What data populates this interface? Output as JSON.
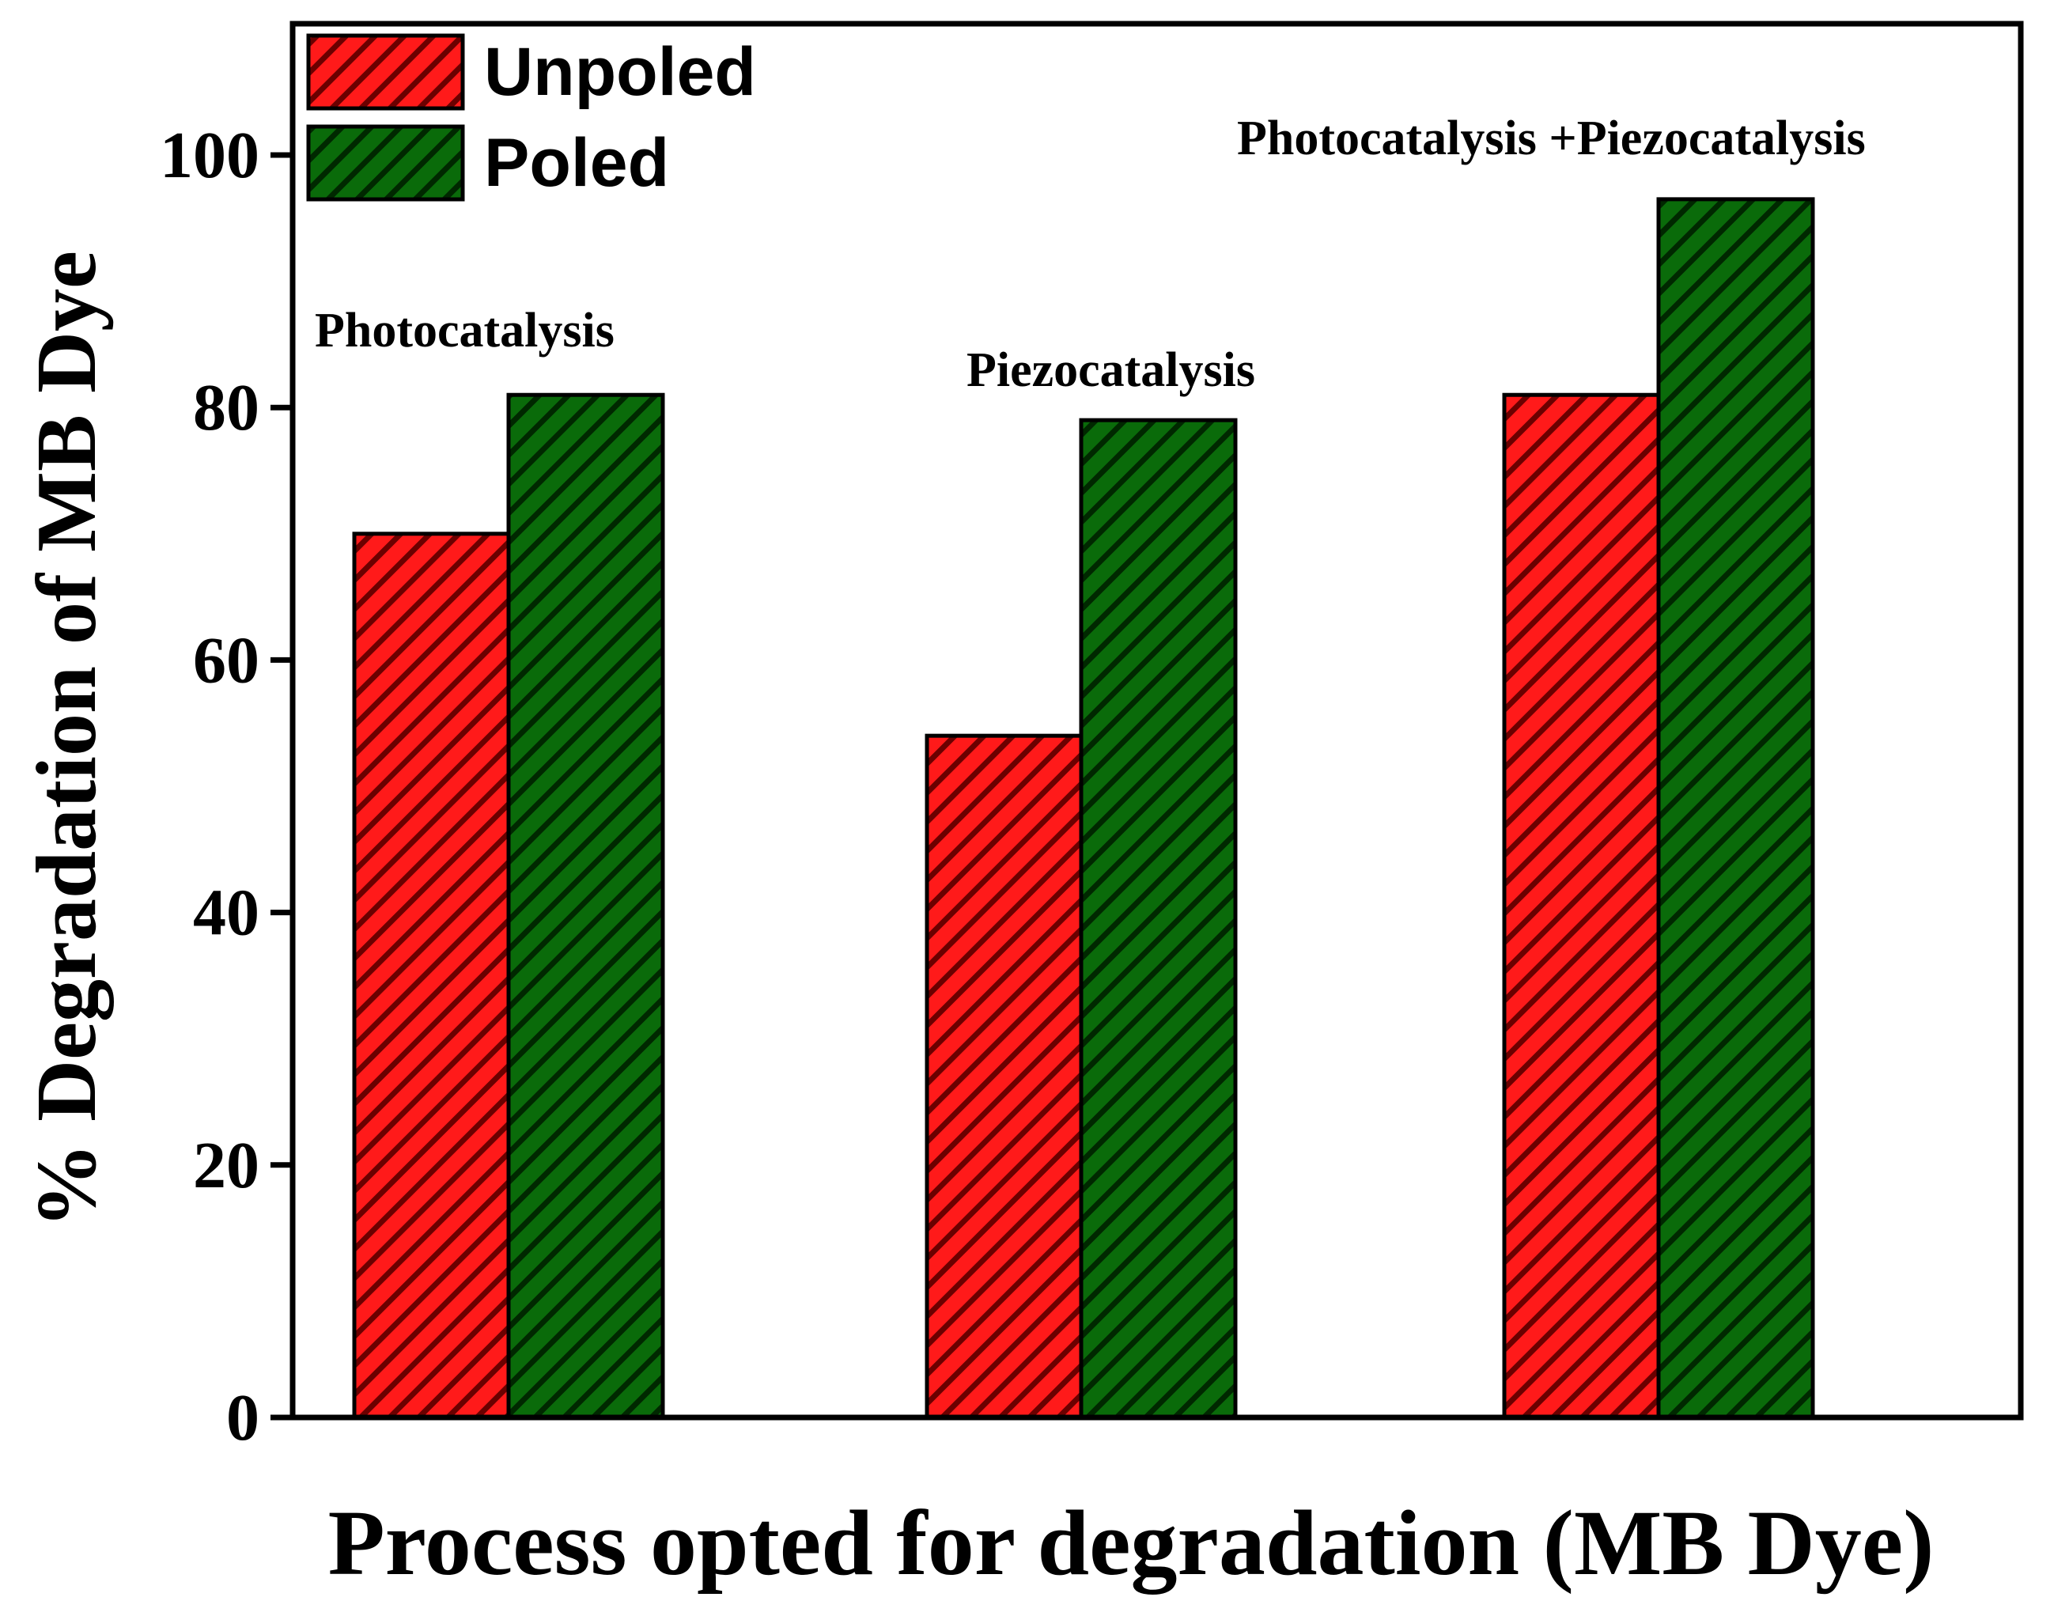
{
  "chart_data": {
    "type": "bar",
    "title": "",
    "xlabel": "Process opted for degradation (MB Dye)",
    "ylabel": "% Degradation of MB Dye",
    "ylim": [
      0,
      110
    ],
    "yticks": [
      0,
      20,
      40,
      60,
      80,
      100
    ],
    "grid": false,
    "legend_position": "top-left",
    "categories": [
      "Photocatalysis",
      "Piezocatalysis",
      "Photocatalysis +Piezocatalysis"
    ],
    "series": [
      {
        "name": "Unpoled",
        "color": "#ff1a1a",
        "values": [
          70,
          54,
          81
        ]
      },
      {
        "name": "Poled",
        "color": "#0a6b0a",
        "values": [
          81,
          79,
          96.5
        ]
      }
    ],
    "annotations": [
      "Photocatalysis",
      "Piezocatalysis",
      "Photocatalysis +Piezocatalysis"
    ]
  }
}
